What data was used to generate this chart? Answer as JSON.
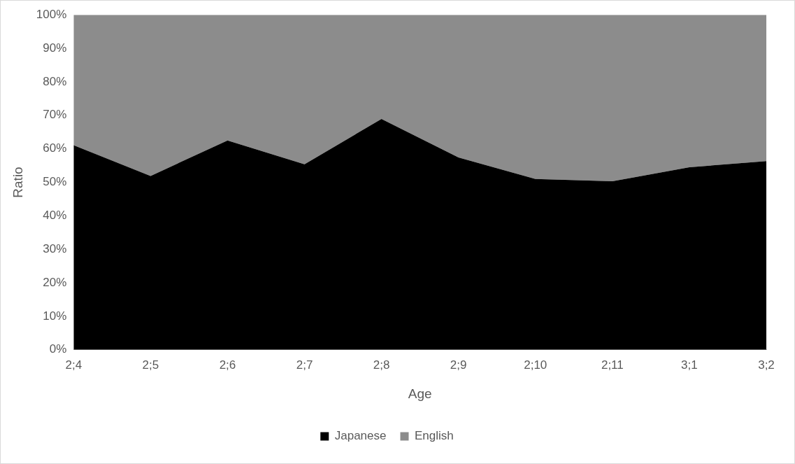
{
  "chart_data": {
    "type": "area",
    "stacked": true,
    "xlabel": "Age",
    "ylabel": "Ratio",
    "categories": [
      "2;4",
      "2;5",
      "2;6",
      "2;7",
      "2;8",
      "2;9",
      "2;10",
      "2;11",
      "3;1",
      "3;2"
    ],
    "series": [
      {
        "name": "Japanese",
        "color": "#000000",
        "values": [
          61.1,
          51.9,
          62.5,
          55.4,
          68.9,
          57.4,
          51.0,
          50.3,
          54.5,
          56.3
        ]
      },
      {
        "name": "English",
        "color": "#8c8c8c",
        "values": [
          38.9,
          48.1,
          37.5,
          44.6,
          31.1,
          42.6,
          49.0,
          49.7,
          45.5,
          43.7
        ]
      }
    ],
    "ylim": [
      0,
      100
    ],
    "yticks": [
      {
        "value": 0,
        "label": "0%"
      },
      {
        "value": 10,
        "label": "10%"
      },
      {
        "value": 20,
        "label": "20%"
      },
      {
        "value": 30,
        "label": "30%"
      },
      {
        "value": 40,
        "label": "40%"
      },
      {
        "value": 50,
        "label": "50%"
      },
      {
        "value": 60,
        "label": "60%"
      },
      {
        "value": 70,
        "label": "70%"
      },
      {
        "value": 80,
        "label": "80%"
      },
      {
        "value": 90,
        "label": "90%"
      },
      {
        "value": 100,
        "label": "100%"
      }
    ],
    "grid": false,
    "legend": "bottom",
    "marker": "none"
  }
}
